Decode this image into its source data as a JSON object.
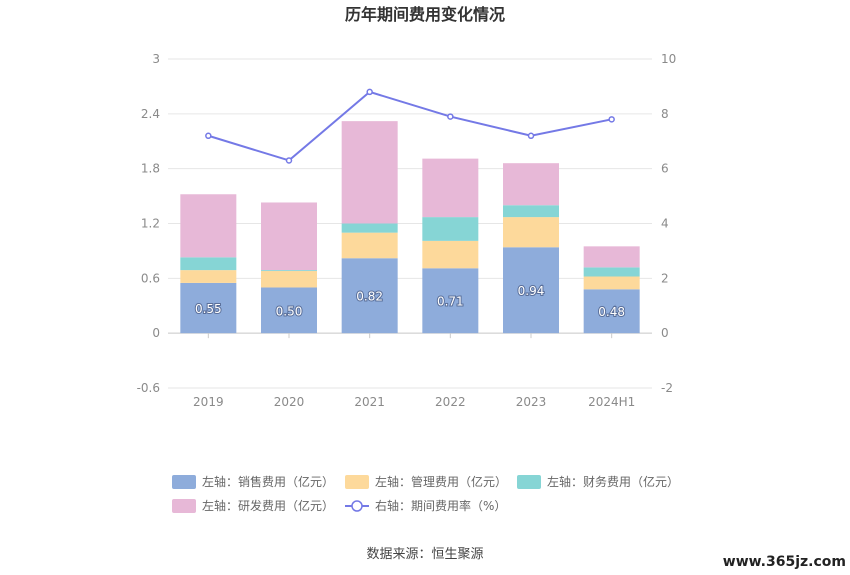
{
  "chart_data": {
    "type": "bar",
    "title": "历年期间费用变化情况",
    "categories": [
      "2019",
      "2020",
      "2021",
      "2022",
      "2023",
      "2024H1"
    ],
    "left_axis": {
      "min": -0.6,
      "max": 3,
      "ticks": [
        "3",
        "2.4",
        "1.8",
        "1.2",
        "0.6",
        "0",
        "-0.6"
      ],
      "tick_values": [
        3,
        2.4,
        1.8,
        1.2,
        0.6,
        0,
        -0.6
      ]
    },
    "right_axis": {
      "min": -2,
      "max": 10,
      "ticks": [
        "10",
        "8",
        "6",
        "4",
        "2",
        "0",
        "-2"
      ],
      "tick_values": [
        10,
        8,
        6,
        4,
        2,
        0,
        -2
      ]
    },
    "series": [
      {
        "name": "左轴：销售费用（亿元）",
        "kind": "bar",
        "axis": "left",
        "color": "#8eacdb",
        "values": [
          0.55,
          0.5,
          0.82,
          0.71,
          0.94,
          0.48
        ],
        "labels": [
          "0.55",
          "0.50",
          "0.82",
          "0.71",
          "0.94",
          "0.48"
        ]
      },
      {
        "name": "左轴：管理费用（亿元）",
        "kind": "bar",
        "axis": "left",
        "color": "#fdd99b",
        "values": [
          0.14,
          0.18,
          0.28,
          0.3,
          0.33,
          0.14
        ]
      },
      {
        "name": "左轴：财务费用（亿元）",
        "kind": "bar",
        "axis": "left",
        "color": "#86d5d5",
        "values": [
          0.14,
          0.01,
          0.1,
          0.26,
          0.13,
          0.1
        ]
      },
      {
        "name": "左轴：研发费用（亿元）",
        "kind": "bar",
        "axis": "left",
        "color": "#e7b8d7",
        "values": [
          0.69,
          0.74,
          1.12,
          0.64,
          0.46,
          0.23
        ]
      },
      {
        "name": "右轴：期间费用率（%）",
        "kind": "line",
        "axis": "right",
        "color": "#7479e6",
        "values": [
          7.2,
          6.3,
          8.8,
          7.9,
          7.2,
          7.8
        ]
      }
    ],
    "source": "数据来源：恒生聚源",
    "watermark": "www.365jz.com"
  }
}
